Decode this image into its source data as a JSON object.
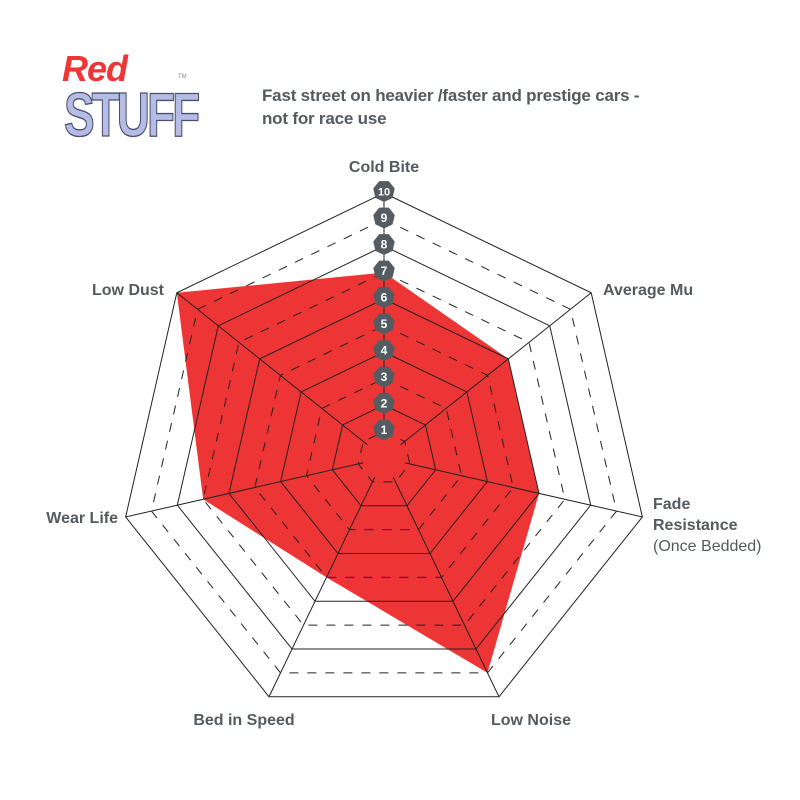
{
  "logo": {
    "text_top": "Red",
    "text_bottom": "STUFF",
    "trademark": "TM"
  },
  "title_lines": [
    "Fast street on heavier /faster and prestige cars -",
    "not for race use"
  ],
  "chart_data": {
    "type": "radar",
    "axes": [
      "Cold Bite",
      "Average Mu",
      "Fade Resistance (Once Bedded)",
      "Low Noise",
      "Bed in Speed",
      "Wear Life",
      "Low Dust"
    ],
    "axis_label_lines": [
      [
        "Cold Bite"
      ],
      [
        "Average Mu"
      ],
      [
        "Fade",
        "Resistance",
        "(Once Bedded)"
      ],
      [
        "Low Noise"
      ],
      [
        "Bed in Speed"
      ],
      [
        "Wear Life"
      ],
      [
        "Low Dust"
      ]
    ],
    "values": [
      7,
      6,
      6,
      9,
      5,
      7,
      10
    ],
    "scale_ticks": [
      "1",
      "2",
      "3",
      "4",
      "5",
      "6",
      "7",
      "8",
      "9",
      "10"
    ],
    "range": [
      0,
      10
    ],
    "grid": "alternating solid (even) and dashed (odd) heptagon rings",
    "colors": {
      "fill": "#ee3535",
      "grid": "#222222",
      "tick_badge": "#545b61",
      "tick_text": "#ffffff",
      "label": "#555a5e"
    }
  }
}
